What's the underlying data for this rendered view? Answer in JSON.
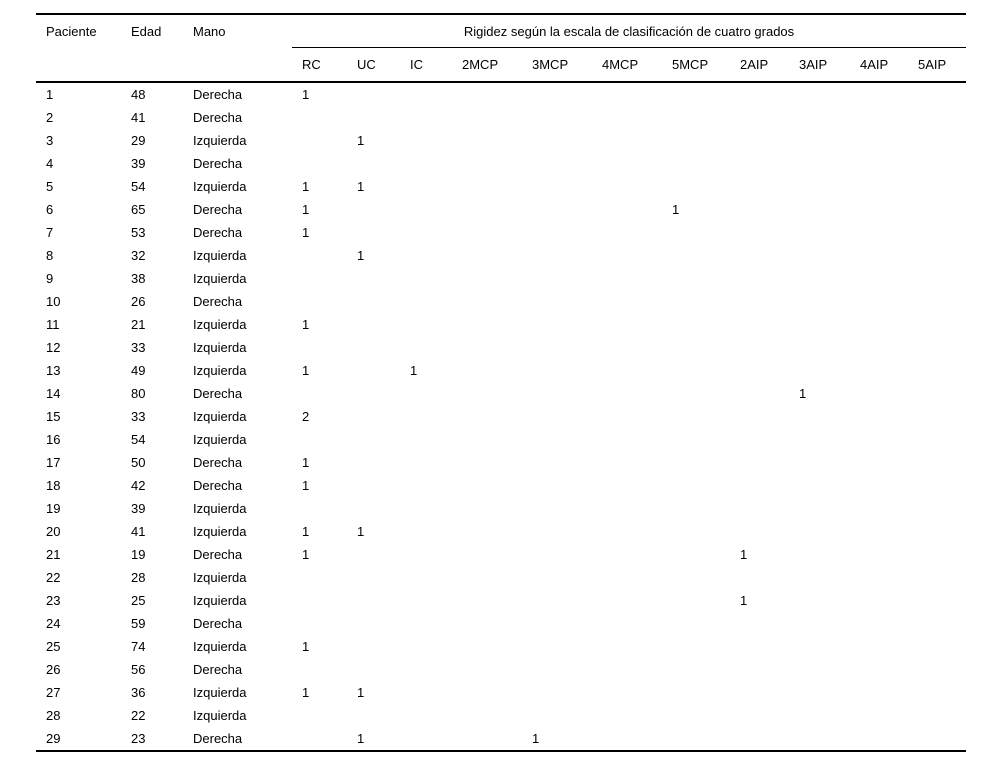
{
  "table": {
    "group_header": "Rigidez según la escala de clasificación de cuatro grados",
    "columns": [
      "Paciente",
      "Edad",
      "Mano"
    ],
    "sub_columns": [
      "RC",
      "UC",
      "IC",
      "2MCP",
      "3MCP",
      "4MCP",
      "5MCP",
      "2AIP",
      "3AIP",
      "4AIP",
      "5AIP"
    ],
    "rows": [
      [
        "1",
        "48",
        "Derecha",
        "1",
        "",
        "",
        "",
        "",
        "",
        "",
        "",
        "",
        "",
        ""
      ],
      [
        "2",
        "41",
        "Derecha",
        "",
        "",
        "",
        "",
        "",
        "",
        "",
        "",
        "",
        "",
        ""
      ],
      [
        "3",
        "29",
        "Izquierda",
        "",
        "1",
        "",
        "",
        "",
        "",
        "",
        "",
        "",
        "",
        ""
      ],
      [
        "4",
        "39",
        "Derecha",
        "",
        "",
        "",
        "",
        "",
        "",
        "",
        "",
        "",
        "",
        ""
      ],
      [
        "5",
        "54",
        "Izquierda",
        "1",
        "1",
        "",
        "",
        "",
        "",
        "",
        "",
        "",
        "",
        ""
      ],
      [
        "6",
        "65",
        "Derecha",
        "1",
        "",
        "",
        "",
        "",
        "",
        "1",
        "",
        "",
        "",
        ""
      ],
      [
        "7",
        "53",
        "Derecha",
        "1",
        "",
        "",
        "",
        "",
        "",
        "",
        "",
        "",
        "",
        ""
      ],
      [
        "8",
        "32",
        "Izquierda",
        "",
        "1",
        "",
        "",
        "",
        "",
        "",
        "",
        "",
        "",
        ""
      ],
      [
        "9",
        "38",
        "Izquierda",
        "",
        "",
        "",
        "",
        "",
        "",
        "",
        "",
        "",
        "",
        ""
      ],
      [
        "10",
        "26",
        "Derecha",
        "",
        "",
        "",
        "",
        "",
        "",
        "",
        "",
        "",
        "",
        ""
      ],
      [
        "11",
        "21",
        "Izquierda",
        "1",
        "",
        "",
        "",
        "",
        "",
        "",
        "",
        "",
        "",
        ""
      ],
      [
        "12",
        "33",
        "Izquierda",
        "",
        "",
        "",
        "",
        "",
        "",
        "",
        "",
        "",
        "",
        ""
      ],
      [
        "13",
        "49",
        "Izquierda",
        "1",
        "",
        "1",
        "",
        "",
        "",
        "",
        "",
        "",
        "",
        ""
      ],
      [
        "14",
        "80",
        "Derecha",
        "",
        "",
        "",
        "",
        "",
        "",
        "",
        "",
        "1",
        "",
        ""
      ],
      [
        "15",
        "33",
        "Izquierda",
        "2",
        "",
        "",
        "",
        "",
        "",
        "",
        "",
        "",
        "",
        ""
      ],
      [
        "16",
        "54",
        "Izquierda",
        "",
        "",
        "",
        "",
        "",
        "",
        "",
        "",
        "",
        "",
        ""
      ],
      [
        "17",
        "50",
        "Derecha",
        "1",
        "",
        "",
        "",
        "",
        "",
        "",
        "",
        "",
        "",
        ""
      ],
      [
        "18",
        "42",
        "Derecha",
        "1",
        "",
        "",
        "",
        "",
        "",
        "",
        "",
        "",
        "",
        ""
      ],
      [
        "19",
        "39",
        "Izquierda",
        "",
        "",
        "",
        "",
        "",
        "",
        "",
        "",
        "",
        "",
        ""
      ],
      [
        "20",
        "41",
        "Izquierda",
        "1",
        "1",
        "",
        "",
        "",
        "",
        "",
        "",
        "",
        "",
        ""
      ],
      [
        "21",
        "19",
        "Derecha",
        "1",
        "",
        "",
        "",
        "",
        "",
        "",
        "1",
        "",
        "",
        ""
      ],
      [
        "22",
        "28",
        "Izquierda",
        "",
        "",
        "",
        "",
        "",
        "",
        "",
        "",
        "",
        "",
        ""
      ],
      [
        "23",
        "25",
        "Izquierda",
        "",
        "",
        "",
        "",
        "",
        "",
        "",
        "1",
        "",
        "",
        ""
      ],
      [
        "24",
        "59",
        "Derecha",
        "",
        "",
        "",
        "",
        "",
        "",
        "",
        "",
        "",
        "",
        ""
      ],
      [
        "25",
        "74",
        "Izquierda",
        "1",
        "",
        "",
        "",
        "",
        "",
        "",
        "",
        "",
        "",
        ""
      ],
      [
        "26",
        "56",
        "Derecha",
        "",
        "",
        "",
        "",
        "",
        "",
        "",
        "",
        "",
        "",
        ""
      ],
      [
        "27",
        "36",
        "Izquierda",
        "1",
        "1",
        "",
        "",
        "",
        "",
        "",
        "",
        "",
        "",
        ""
      ],
      [
        "28",
        "22",
        "Izquierda",
        "",
        "",
        "",
        "",
        "",
        "",
        "",
        "",
        "",
        "",
        ""
      ],
      [
        "29",
        "23",
        "Derecha",
        "",
        "1",
        "",
        "",
        "1",
        "",
        "",
        "",
        "",
        "",
        ""
      ]
    ]
  }
}
